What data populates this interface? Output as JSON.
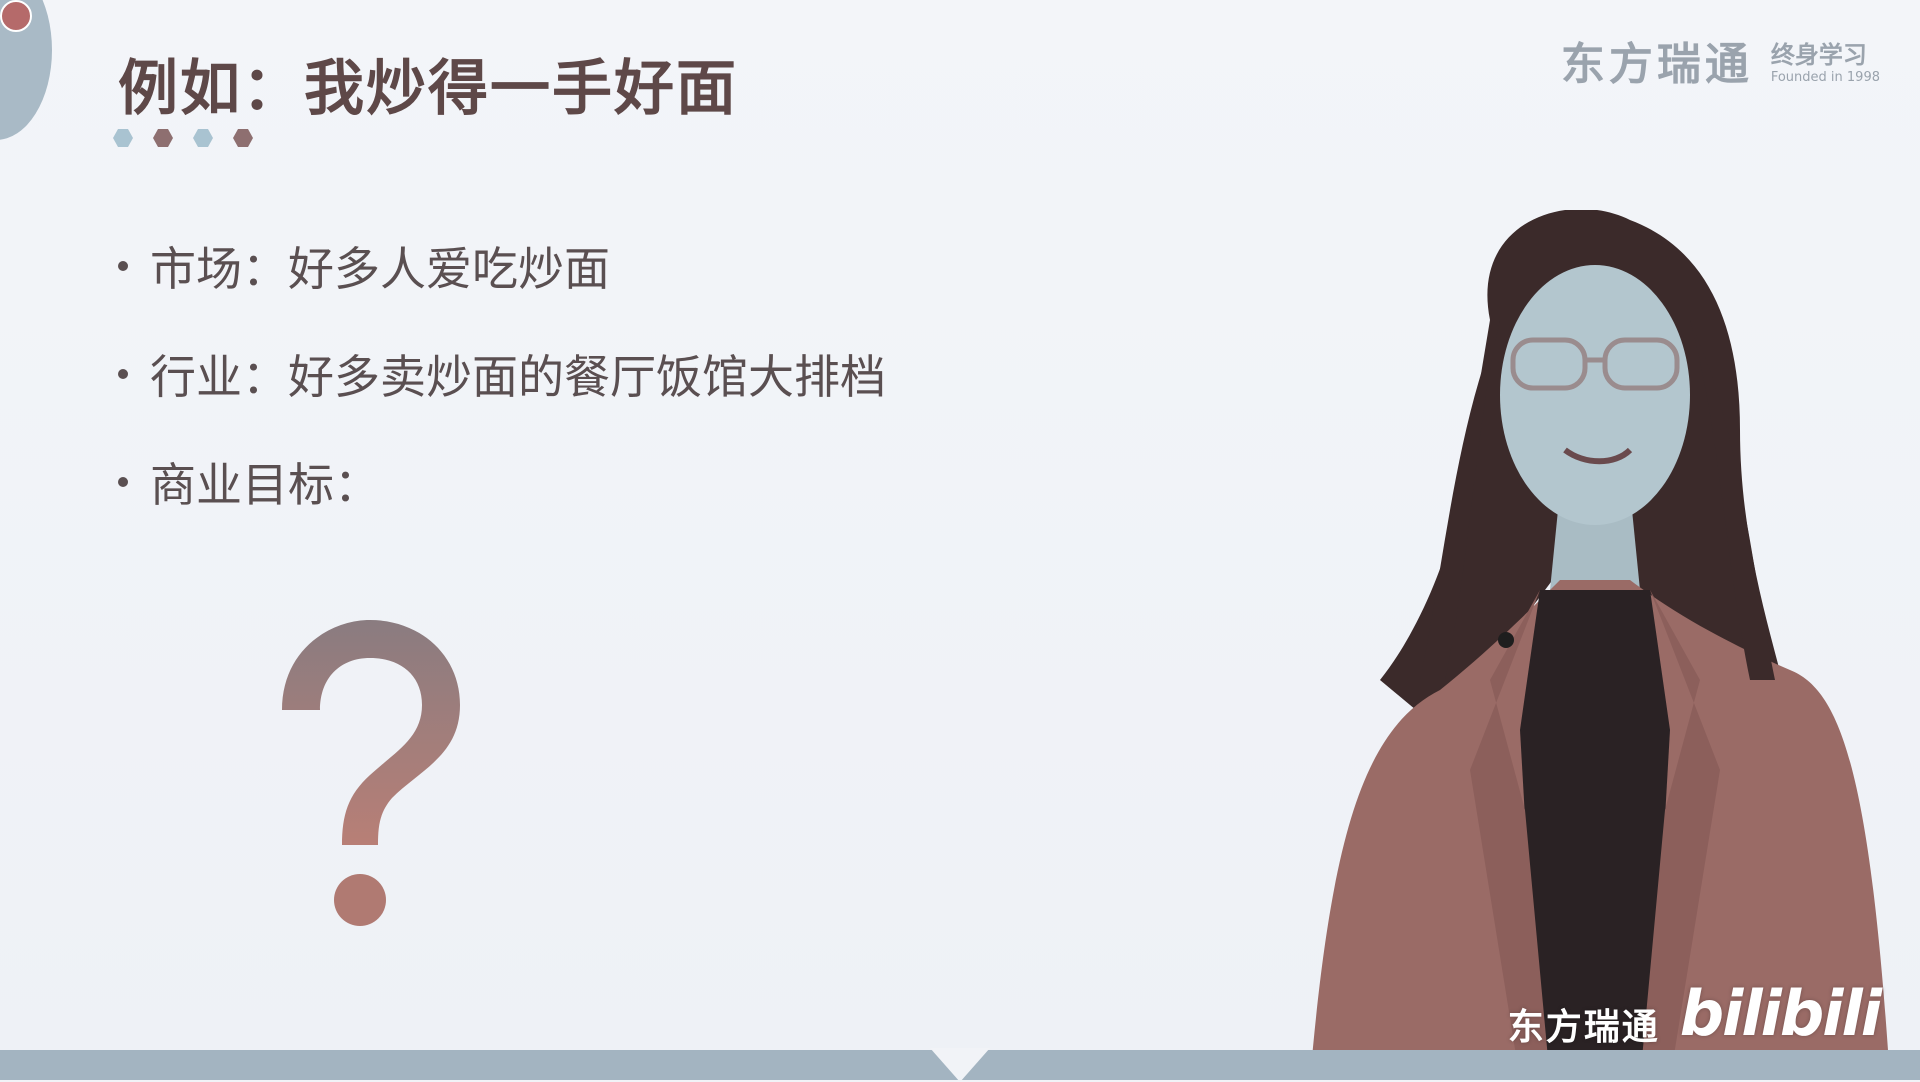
{
  "slide": {
    "title": "例如：我炒得一手好面",
    "bullets": [
      {
        "label": "市场：",
        "text": "好多人爱吃炒面"
      },
      {
        "label": "行业：",
        "text": "好多卖炒面的餐厅饭馆大排档"
      },
      {
        "label": "商业目标：",
        "text": ""
      }
    ],
    "question_mark": "?",
    "hex_colors": [
      "#a9c3d1",
      "#8e6f70",
      "#a9c3d1",
      "#8e6f70"
    ]
  },
  "logo": {
    "brand": "东方瑞通",
    "sub_title": "终身学习",
    "founded": "Founded in 1998"
  },
  "watermark": {
    "brand": "东方瑞通",
    "platform": "bilibili"
  },
  "colors": {
    "accent": "#8e6f70",
    "title": "#5e4848",
    "text": "#5a4f51",
    "bar": "#a3b4c1"
  }
}
